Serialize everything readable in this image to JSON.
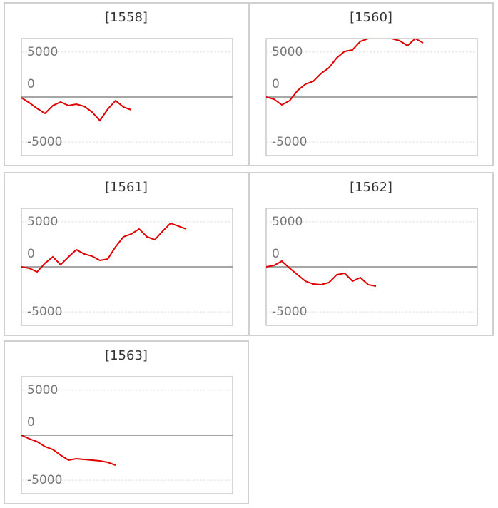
{
  "chart_data": [
    {
      "type": "line",
      "title": "[1558]",
      "color": "#e00000",
      "ylim": [
        -6500,
        6500
      ],
      "yticks": [
        5000,
        0,
        -5000
      ],
      "values": [
        -79,
        -634,
        -1269,
        -1824,
        -951,
        -555,
        -951,
        -793,
        -1031,
        -1665,
        -2616,
        -1348,
        -397,
        -1110,
        -1427
      ]
    },
    {
      "type": "line",
      "title": "[1560]",
      "color": "#e00000",
      "ylim": [
        -6500,
        6500
      ],
      "yticks": [
        5000,
        0,
        -5000
      ],
      "values": [
        0,
        -238,
        -872,
        -397,
        714,
        1427,
        1745,
        2617,
        3251,
        4361,
        5075,
        5234,
        6186,
        6500,
        6500,
        6500,
        6500,
        6264,
        5710,
        6500,
        6027
      ]
    },
    {
      "type": "line",
      "title": "[1561]",
      "color": "#e00000",
      "ylim": [
        -6500,
        6500
      ],
      "yticks": [
        5000,
        0,
        -5000
      ],
      "values": [
        0,
        -159,
        -555,
        397,
        1110,
        238,
        1110,
        1903,
        1427,
        1189,
        714,
        872,
        2220,
        3330,
        3648,
        4203,
        3330,
        3013,
        3965,
        4837,
        4520,
        4203
      ]
    },
    {
      "type": "line",
      "title": "[1562]",
      "color": "#e00000",
      "ylim": [
        -6500,
        6500
      ],
      "yticks": [
        5000,
        0,
        -5000
      ],
      "values": [
        0,
        159,
        634,
        -159,
        -872,
        -1586,
        -1903,
        -1982,
        -1745,
        -872,
        -714,
        -1586,
        -1189,
        -1982,
        -2141
      ]
    },
    {
      "type": "line",
      "title": "[1563]",
      "color": "#e00000",
      "ylim": [
        -6500,
        6500
      ],
      "yticks": [
        5000,
        0,
        -5000
      ],
      "values": [
        0,
        -397,
        -714,
        -1269,
        -1586,
        -2220,
        -2775,
        -2616,
        -2696,
        -2775,
        -2855,
        -3013,
        -3330
      ]
    }
  ]
}
